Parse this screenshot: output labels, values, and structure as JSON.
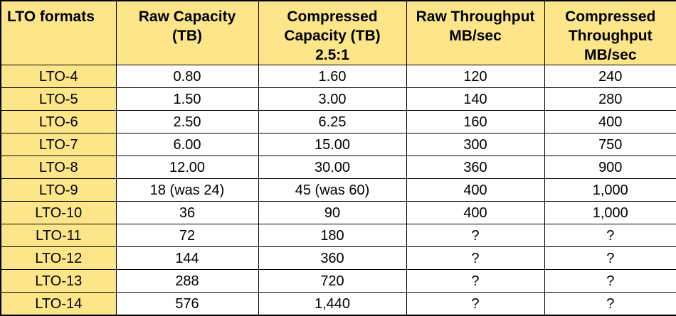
{
  "table": {
    "headers": [
      "LTO formats",
      "Raw Capacity\n(TB)",
      "Compressed\nCapacity (TB)\n2.5:1",
      "Raw Throughput\nMB/sec",
      "Compressed\nThroughput\nMB/sec"
    ],
    "rows": [
      [
        "LTO-4",
        "0.80",
        "1.60",
        "120",
        "240"
      ],
      [
        "LTO-5",
        "1.50",
        "3.00",
        "140",
        "280"
      ],
      [
        "LTO-6",
        "2.50",
        "6.25",
        "160",
        "400"
      ],
      [
        "LTO-7",
        "6.00",
        "15.00",
        "300",
        "750"
      ],
      [
        "LTO-8",
        "12.00",
        "30.00",
        "360",
        "900"
      ],
      [
        "LTO-9",
        "18 (was 24)",
        "45 (was 60)",
        "400",
        "1,000"
      ],
      [
        "LTO-10",
        "36",
        "90",
        "400",
        "1,000"
      ],
      [
        "LTO-11",
        "72",
        "180",
        "?",
        "?"
      ],
      [
        "LTO-12",
        "144",
        "360",
        "?",
        "?"
      ],
      [
        "LTO-13",
        "288",
        "720",
        "?",
        "?"
      ],
      [
        "LTO-14",
        "576",
        "1,440",
        "?",
        "?"
      ]
    ],
    "colors": {
      "header_bg": "#fde68a",
      "format_col_bg": "#fde68a",
      "cell_bg": "#ffffff",
      "border": "#000000"
    }
  }
}
